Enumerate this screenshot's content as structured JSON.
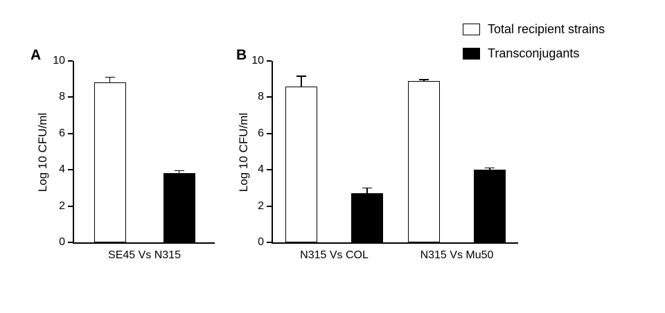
{
  "legend": {
    "items": [
      {
        "label": "Total recipient strains",
        "swatch_color": "#ffffff"
      },
      {
        "label": "Transconjugants",
        "swatch_color": "#000000"
      }
    ]
  },
  "chart_data": [
    {
      "type": "bar",
      "panel": "A",
      "title": "",
      "xlabel": "",
      "ylabel": "Log 10 CFU/ml",
      "ylim": [
        0,
        10
      ],
      "yticks": [
        0,
        2,
        4,
        6,
        8,
        10
      ],
      "grid": false,
      "legend_position": "top-right",
      "categories": [
        "SE45 Vs N315"
      ],
      "series": [
        {
          "name": "Total recipient strains",
          "color": "#ffffff",
          "values": [
            8.8
          ],
          "errors": [
            0.3
          ]
        },
        {
          "name": "Transconjugants",
          "color": "#000000",
          "values": [
            3.8
          ],
          "errors": [
            0.15
          ]
        }
      ]
    },
    {
      "type": "bar",
      "panel": "B",
      "title": "",
      "xlabel": "",
      "ylabel": "Log 10 CFU/ml",
      "ylim": [
        0,
        10
      ],
      "yticks": [
        0,
        2,
        4,
        6,
        8,
        10
      ],
      "grid": false,
      "legend_position": "top-right",
      "categories": [
        "N315 Vs COL",
        "N315 Vs Mu50"
      ],
      "series": [
        {
          "name": "Total recipient strains",
          "color": "#ffffff",
          "values": [
            8.6,
            8.9
          ],
          "errors": [
            0.55,
            0.07
          ]
        },
        {
          "name": "Transconjugants",
          "color": "#000000",
          "values": [
            2.7,
            4.0
          ],
          "errors": [
            0.3,
            0.1
          ]
        }
      ]
    }
  ]
}
